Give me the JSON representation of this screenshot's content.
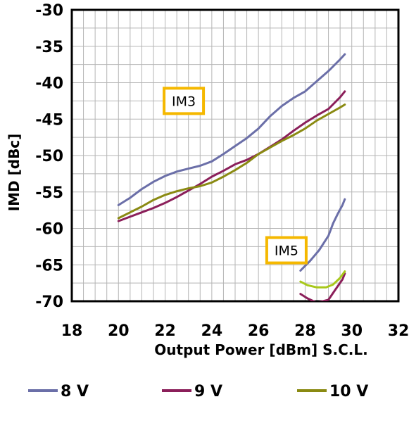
{
  "chart_data": {
    "type": "line",
    "title": "",
    "xlabel": "Output Power [dBm] S.C.L.",
    "ylabel": "IMD [dBc]",
    "xlim": [
      18,
      32
    ],
    "ylim": [
      -70,
      -30
    ],
    "xticks": [
      18,
      20,
      22,
      24,
      26,
      28,
      30,
      32
    ],
    "yticks": [
      -30,
      -35,
      -40,
      -45,
      -50,
      -55,
      -60,
      -65,
      -70
    ],
    "x_minor_step": 0.5,
    "y_minor_step": 2.5,
    "grid": true,
    "legend_position": "bottom",
    "legend": [
      {
        "label": "8 V",
        "color": "#6b6fa8"
      },
      {
        "label": "9 V",
        "color": "#8b1f5a"
      },
      {
        "label": "10 V",
        "color": "#8a8a12"
      }
    ],
    "annotations": [
      {
        "text": "IM3",
        "x": 22.8,
        "y": -42.5
      },
      {
        "text": "IM5",
        "x": 27.2,
        "y": -63.0
      }
    ],
    "series": [
      {
        "name": "8 V",
        "group": "IM3",
        "color": "#6b6fa8",
        "x": [
          20,
          20.5,
          21,
          21.5,
          22,
          22.5,
          23,
          23.5,
          24,
          24.5,
          25,
          25.5,
          26,
          26.5,
          27,
          27.5,
          28,
          28.5,
          29,
          29.5,
          29.7
        ],
        "y": [
          -56.8,
          -55.8,
          -54.6,
          -53.6,
          -52.8,
          -52.2,
          -51.8,
          -51.4,
          -50.8,
          -49.8,
          -48.7,
          -47.6,
          -46.3,
          -44.6,
          -43.2,
          -42.1,
          -41.2,
          -39.8,
          -38.4,
          -36.8,
          -36.1
        ]
      },
      {
        "name": "9 V",
        "group": "IM3",
        "color": "#8b1f5a",
        "x": [
          20,
          20.5,
          21,
          21.5,
          22,
          22.5,
          23,
          23.5,
          24,
          24.5,
          25,
          25.5,
          26,
          26.5,
          27,
          27.5,
          28,
          28.5,
          29,
          29.5,
          29.7
        ],
        "y": [
          -59.0,
          -58.4,
          -57.8,
          -57.2,
          -56.5,
          -55.7,
          -54.8,
          -53.9,
          -52.9,
          -52.1,
          -51.2,
          -50.6,
          -49.8,
          -48.8,
          -47.8,
          -46.6,
          -45.5,
          -44.5,
          -43.6,
          -42.0,
          -41.2
        ]
      },
      {
        "name": "10 V",
        "group": "IM3",
        "color": "#8a8a12",
        "x": [
          20,
          20.5,
          21,
          21.5,
          22,
          22.5,
          23,
          23.5,
          24,
          24.5,
          25,
          25.5,
          26,
          26.5,
          27,
          27.5,
          28,
          28.5,
          29,
          29.5,
          29.7
        ],
        "y": [
          -58.6,
          -57.8,
          -57.0,
          -56.1,
          -55.4,
          -54.9,
          -54.5,
          -54.2,
          -53.7,
          -52.9,
          -52.0,
          -51.0,
          -49.8,
          -48.9,
          -48.0,
          -47.2,
          -46.3,
          -45.2,
          -44.3,
          -43.4,
          -43.0
        ]
      },
      {
        "name": "8 V",
        "group": "IM5",
        "color": "#6b6fa8",
        "x": [
          27.8,
          28.2,
          28.6,
          29.0,
          29.2,
          29.4,
          29.6,
          29.7
        ],
        "y": [
          -65.8,
          -64.5,
          -63.0,
          -61.0,
          -59.3,
          -58.0,
          -56.8,
          -56.0
        ]
      },
      {
        "name": "9 V",
        "group": "IM5",
        "color": "#8b1f5a",
        "x": [
          27.8,
          28.1,
          28.5,
          29.0,
          29.3,
          29.6,
          29.7
        ],
        "y": [
          -69.0,
          -69.6,
          -70.2,
          -69.8,
          -68.4,
          -67.0,
          -66.2
        ]
      },
      {
        "name": "10 V",
        "group": "IM5",
        "color": "#a8c81a",
        "x": [
          27.8,
          28.1,
          28.5,
          28.9,
          29.2,
          29.5,
          29.7
        ],
        "y": [
          -67.3,
          -67.8,
          -68.1,
          -68.1,
          -67.7,
          -66.8,
          -65.9
        ]
      }
    ]
  }
}
